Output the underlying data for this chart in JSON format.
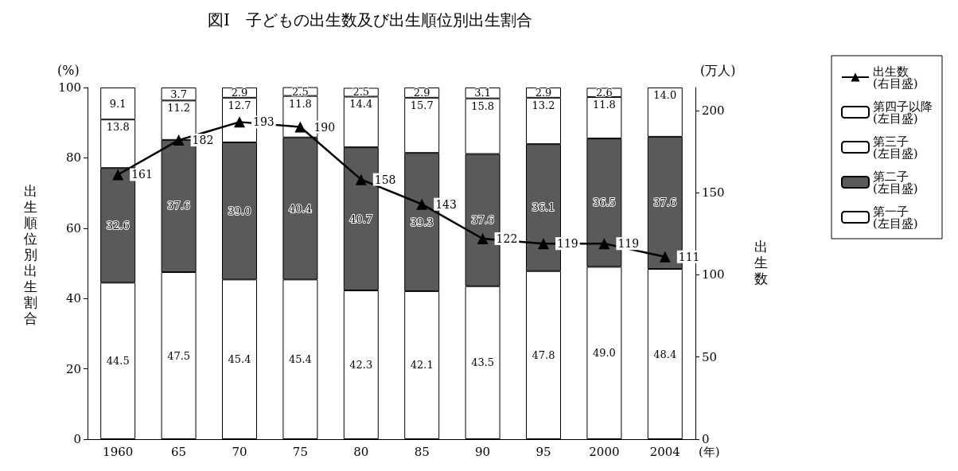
{
  "chart_data": {
    "type": "bar",
    "title": "図Ⅰ　子どもの出生数及び出生順位別出生割合",
    "xlabel": "(年)",
    "ylabel": "出生順位別出生割合",
    "y2label": "出生数",
    "annotations": [
      "(%)",
      "(万人)"
    ],
    "categories": [
      "1960",
      "65",
      "70",
      "75",
      "80",
      "85",
      "90",
      "95",
      "2000",
      "2004"
    ],
    "stacked": true,
    "ylim": [
      0,
      100
    ],
    "yticks": [
      0,
      20,
      40,
      60,
      80,
      100
    ],
    "y2lim": [
      0,
      214
    ],
    "y2ticks": [
      0,
      50,
      100,
      150,
      200
    ],
    "legend": "right",
    "grid": false,
    "marker": "triangle",
    "series": [
      {
        "name": "第一子\n(左目盛)",
        "color": "#ffffff",
        "values": [
          44.5,
          47.5,
          45.4,
          45.4,
          42.3,
          42.1,
          43.5,
          47.8,
          49.0,
          48.4
        ],
        "value_labels": [
          "44.5",
          "47.5",
          "45.4",
          "45.4",
          "42.3",
          "42.1",
          "43.5",
          "47.8",
          "49.0",
          "48.4"
        ]
      },
      {
        "name": "第二子\n(左目盛)",
        "color": "#5a5a5a",
        "values": [
          32.6,
          37.6,
          39.0,
          40.4,
          40.7,
          39.3,
          37.6,
          36.1,
          36.5,
          37.6
        ],
        "value_labels": [
          "32.6",
          "37.6",
          "39.0",
          "40.4",
          "40.7",
          "39.3",
          "37.6",
          "36.1",
          "36.5",
          "37.6"
        ]
      },
      {
        "name": "第三子\n(左目盛)",
        "color": "#ffffff",
        "values": [
          13.8,
          11.2,
          12.7,
          11.8,
          14.4,
          15.7,
          15.8,
          13.2,
          11.8,
          14.0
        ],
        "value_labels": [
          "13.8",
          "11.2",
          "12.7",
          "11.8",
          "14.4",
          "15.7",
          "15.8",
          "13.2",
          "11.8",
          "14.0"
        ]
      },
      {
        "name": "第四子以降\n(左目盛)",
        "color": "#ffffff",
        "values": [
          9.1,
          3.7,
          2.9,
          2.5,
          2.5,
          2.9,
          3.1,
          2.9,
          2.6,
          null
        ],
        "value_labels": [
          "9.1",
          "3.7",
          "2.9",
          "2.5",
          "2.5",
          "2.9",
          "3.1",
          "2.9",
          "2.6",
          null
        ]
      },
      {
        "name": "出生数\n(右目盛)",
        "type": "line",
        "axis": "y2",
        "color": "#000000",
        "values": [
          161,
          182,
          193,
          190,
          158,
          143,
          122,
          119,
          119,
          111
        ],
        "value_labels": [
          "161",
          "182",
          "193",
          "190",
          "158",
          "143",
          "122",
          "119",
          "119",
          "111"
        ]
      }
    ]
  }
}
